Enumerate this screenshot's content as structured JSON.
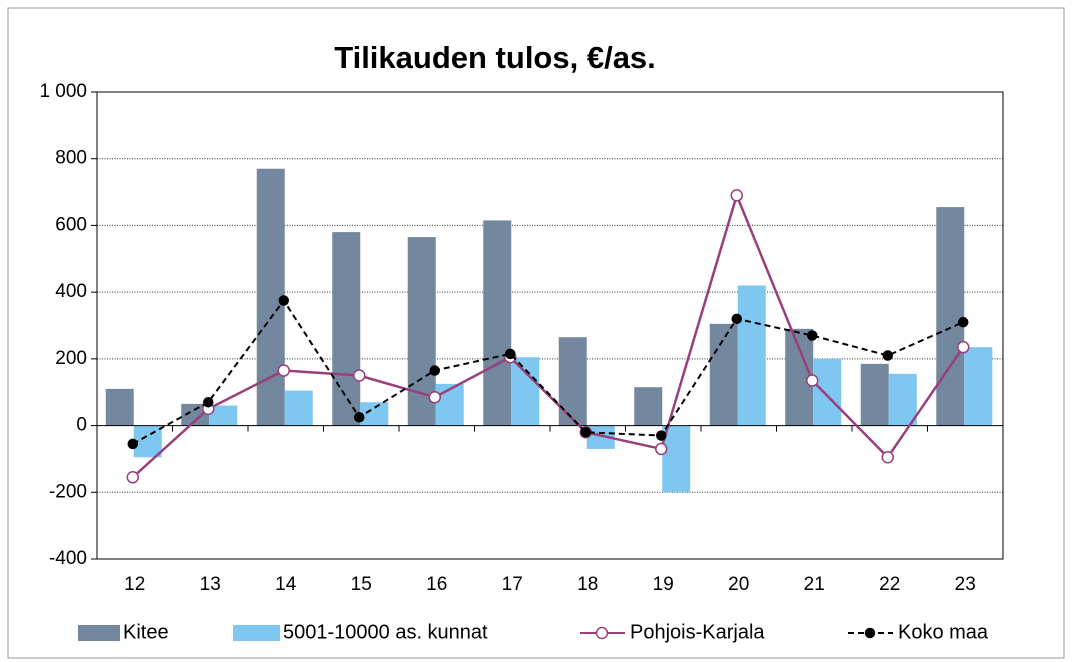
{
  "chart_data": {
    "type": "bar",
    "title": "Tilikauden tulos, €/as.",
    "categories": [
      "12",
      "13",
      "14",
      "15",
      "16",
      "17",
      "18",
      "19",
      "20",
      "21",
      "22",
      "23"
    ],
    "series": [
      {
        "name": "Kitee",
        "type": "bar",
        "color": "#73879f",
        "values": [
          110,
          65,
          770,
          580,
          565,
          615,
          265,
          115,
          305,
          290,
          185,
          655
        ]
      },
      {
        "name": "5001-10000 as. kunnat",
        "type": "bar",
        "color": "#7dc7f0",
        "values": [
          -95,
          60,
          105,
          70,
          125,
          205,
          -70,
          -200,
          420,
          200,
          155,
          235
        ]
      },
      {
        "name": "Pohjois-Karjala",
        "type": "line",
        "color": "#993f7c",
        "marker": "open",
        "dashed": false,
        "values": [
          -155,
          50,
          165,
          150,
          85,
          205,
          -20,
          -70,
          690,
          135,
          -95,
          235
        ]
      },
      {
        "name": "Koko maa",
        "type": "line",
        "color": "#000000",
        "marker": "filled",
        "dashed": true,
        "values": [
          -55,
          70,
          375,
          25,
          165,
          215,
          -20,
          -30,
          320,
          270,
          210,
          310
        ]
      }
    ],
    "ylim": [
      -400,
      1000
    ],
    "yticks": [
      -400,
      -200,
      0,
      200,
      400,
      600,
      800,
      {
        "value": 1000,
        "label": "1 000"
      }
    ],
    "grid": true,
    "legend": "bottom"
  }
}
